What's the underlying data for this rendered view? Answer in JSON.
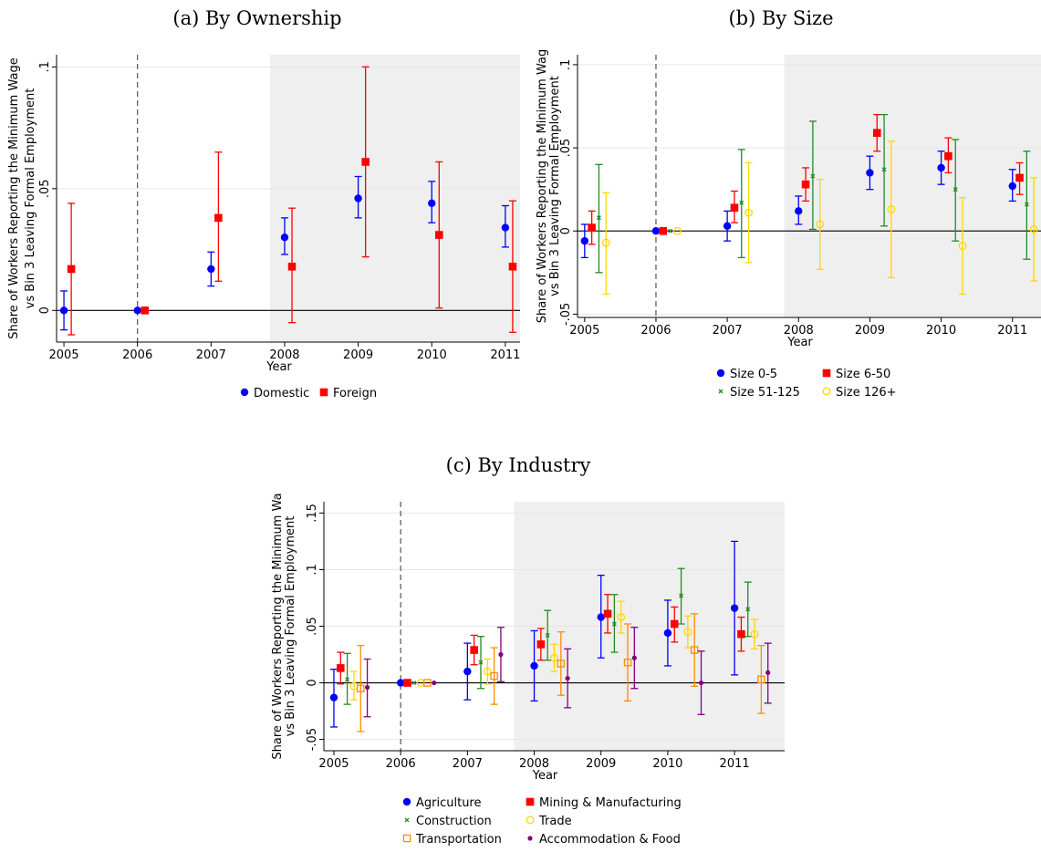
{
  "figure": {
    "panels_text": [
      "(a) By Ownership",
      "(b) By Size",
      "(c) By Industry"
    ]
  },
  "chart_data": [
    {
      "type": "scatter",
      "panel": "a",
      "title": "(a) By Ownership",
      "xlabel": "Year",
      "ylabel_lines": [
        "Share of Workers Reporting the Minimum Wage",
        "vs Bin 3 Leaving Formal Employment"
      ],
      "x_ticks": [
        "2005",
        "2006",
        "2007",
        "2008",
        "2009",
        "2010",
        "2011"
      ],
      "y_ticks": [
        0,
        0.05,
        0.1
      ],
      "y_tick_labels": [
        "0",
        ".05",
        ".1"
      ],
      "ylim": [
        -0.013,
        0.105
      ],
      "xlim": [
        2004.9,
        2011.2
      ],
      "shaded_from": 2007.8,
      "reference_year": 2006,
      "legend": [
        "Domestic",
        "Foreign"
      ],
      "series": [
        {
          "name": "Domestic",
          "color": "#0000ff",
          "marker": "circle",
          "offset": 0,
          "x": [
            2005,
            2006,
            2007,
            2008,
            2009,
            2010,
            2011
          ],
          "y": [
            0.0,
            0.0,
            0.017,
            0.03,
            0.046,
            0.044,
            0.034
          ],
          "lo": [
            -0.008,
            0.0,
            0.01,
            0.023,
            0.038,
            0.036,
            0.026
          ],
          "hi": [
            0.008,
            0.0,
            0.024,
            0.038,
            0.055,
            0.053,
            0.043
          ]
        },
        {
          "name": "Foreign",
          "color": "#ff0000",
          "marker": "square",
          "offset": 0.1,
          "x": [
            2005,
            2006,
            2007,
            2008,
            2009,
            2010,
            2011
          ],
          "y": [
            0.017,
            0.0,
            0.038,
            0.018,
            0.061,
            0.031,
            0.018
          ],
          "lo": [
            -0.01,
            0.0,
            0.012,
            -0.005,
            0.022,
            0.001,
            -0.009
          ],
          "hi": [
            0.044,
            0.0,
            0.065,
            0.042,
            0.1,
            0.061,
            0.045
          ]
        }
      ]
    },
    {
      "type": "scatter",
      "panel": "b",
      "title": "(b) By Size",
      "xlabel": "Year",
      "ylabel_lines": [
        "Share of Workers Reporting the Minimum Wag",
        "vs Bin 3 Leaving Formal Employment"
      ],
      "x_ticks": [
        "2005",
        "2006",
        "2007",
        "2008",
        "2009",
        "2010",
        "2011"
      ],
      "y_ticks": [
        -0.05,
        0,
        0.05,
        0.1
      ],
      "y_tick_labels": [
        "-.05",
        "0",
        ".05",
        ".1"
      ],
      "ylim": [
        -0.052,
        0.106
      ],
      "xlim": [
        2004.9,
        2011.4
      ],
      "shaded_from": 2007.8,
      "reference_year": 2006,
      "legend": [
        "Size 0-5",
        "Size 6-50",
        "Size 51-125",
        "Size 126+"
      ],
      "series": [
        {
          "name": "Size 0-5",
          "color": "#0000ff",
          "marker": "circle",
          "offset": 0,
          "x": [
            2005,
            2006,
            2007,
            2008,
            2009,
            2010,
            2011
          ],
          "y": [
            -0.006,
            0.0,
            0.003,
            0.012,
            0.035,
            0.038,
            0.027
          ],
          "lo": [
            -0.016,
            0.0,
            -0.006,
            0.004,
            0.025,
            0.028,
            0.018
          ],
          "hi": [
            0.004,
            0.0,
            0.012,
            0.021,
            0.045,
            0.048,
            0.037
          ]
        },
        {
          "name": "Size 6-50",
          "color": "#ff0000",
          "marker": "square",
          "offset": 0.1,
          "x": [
            2005,
            2006,
            2007,
            2008,
            2009,
            2010,
            2011
          ],
          "y": [
            0.002,
            0.0,
            0.014,
            0.028,
            0.059,
            0.045,
            0.032
          ],
          "lo": [
            -0.008,
            0.0,
            0.005,
            0.018,
            0.048,
            0.035,
            0.022
          ],
          "hi": [
            0.012,
            0.0,
            0.024,
            0.038,
            0.07,
            0.056,
            0.041
          ]
        },
        {
          "name": "Size 51-125",
          "color": "#228b22",
          "marker": "x",
          "offset": 0.2,
          "x": [
            2005,
            2006,
            2007,
            2008,
            2009,
            2010,
            2011
          ],
          "y": [
            0.008,
            0.0,
            0.017,
            0.033,
            0.037,
            0.025,
            0.016
          ],
          "lo": [
            -0.025,
            0.0,
            -0.016,
            0.001,
            0.003,
            -0.006,
            -0.017
          ],
          "hi": [
            0.04,
            0.0,
            0.049,
            0.066,
            0.07,
            0.055,
            0.048
          ]
        },
        {
          "name": "Size 126+",
          "color": "#ffd700",
          "marker": "hollow-circle",
          "offset": 0.3,
          "x": [
            2005,
            2006,
            2007,
            2008,
            2009,
            2010,
            2011
          ],
          "y": [
            -0.007,
            0.0,
            0.011,
            0.004,
            0.013,
            -0.009,
            0.001
          ],
          "lo": [
            -0.038,
            0.0,
            -0.019,
            -0.023,
            -0.028,
            -0.038,
            -0.03
          ],
          "hi": [
            0.023,
            0.0,
            0.041,
            0.031,
            0.054,
            0.02,
            0.032
          ]
        }
      ]
    },
    {
      "type": "scatter",
      "panel": "c",
      "title": "(c) By Industry",
      "xlabel": "Year",
      "ylabel_lines": [
        "Share of Workers Reporting the Minimum Wa",
        "vs Bin 3 Leaving Formal Employment"
      ],
      "x_ticks": [
        "2005",
        "2006",
        "2007",
        "2008",
        "2009",
        "2010",
        "2011"
      ],
      "y_ticks": [
        -0.05,
        0,
        0.05,
        0.1,
        0.15
      ],
      "y_tick_labels": [
        "-.05",
        "0",
        ".05",
        ".1",
        ".15"
      ],
      "ylim": [
        -0.06,
        0.16
      ],
      "xlim": [
        2004.85,
        2011.75
      ],
      "shaded_from": 2007.7,
      "reference_year": 2006,
      "legend": [
        "Agriculture",
        "Mining & Manufacturing",
        "Construction",
        "Trade",
        "Transportation",
        "Accommodation & Food"
      ],
      "series": [
        {
          "name": "Agriculture",
          "color": "#0000ff",
          "marker": "circle",
          "offset": 0,
          "x": [
            2005,
            2006,
            2007,
            2008,
            2009,
            2010,
            2011
          ],
          "y": [
            -0.013,
            0.0,
            0.01,
            0.015,
            0.058,
            0.044,
            0.066
          ],
          "lo": [
            -0.039,
            0.0,
            -0.015,
            -0.016,
            0.022,
            0.015,
            0.007
          ],
          "hi": [
            0.012,
            0.0,
            0.035,
            0.046,
            0.095,
            0.073,
            0.125
          ]
        },
        {
          "name": "Mining & Manufacturing",
          "color": "#ff0000",
          "marker": "square",
          "offset": 0.1,
          "x": [
            2005,
            2006,
            2007,
            2008,
            2009,
            2010,
            2011
          ],
          "y": [
            0.013,
            0.0,
            0.029,
            0.034,
            0.061,
            0.052,
            0.043
          ],
          "lo": [
            -0.001,
            0.0,
            0.016,
            0.02,
            0.044,
            0.036,
            0.028
          ],
          "hi": [
            0.027,
            0.0,
            0.042,
            0.048,
            0.078,
            0.067,
            0.058
          ]
        },
        {
          "name": "Construction",
          "color": "#228b22",
          "marker": "x",
          "offset": 0.2,
          "x": [
            2005,
            2006,
            2007,
            2008,
            2009,
            2010,
            2011
          ],
          "y": [
            0.003,
            0.0,
            0.018,
            0.042,
            0.052,
            0.077,
            0.065
          ],
          "lo": [
            -0.019,
            0.0,
            -0.005,
            0.02,
            0.027,
            0.052,
            0.041
          ],
          "hi": [
            0.026,
            0.0,
            0.041,
            0.064,
            0.078,
            0.101,
            0.089
          ]
        },
        {
          "name": "Trade",
          "color": "#ffd700",
          "marker": "hollow-circle",
          "offset": 0.3,
          "x": [
            2005,
            2006,
            2007,
            2008,
            2009,
            2010,
            2011
          ],
          "y": [
            -0.003,
            0.0,
            0.01,
            0.022,
            0.058,
            0.045,
            0.043
          ],
          "lo": [
            -0.015,
            0.0,
            -0.001,
            0.01,
            0.044,
            0.031,
            0.03
          ],
          "hi": [
            0.01,
            0.0,
            0.021,
            0.034,
            0.072,
            0.059,
            0.056
          ]
        },
        {
          "name": "Transportation",
          "color": "#ff8c00",
          "marker": "hollow-square",
          "offset": 0.4,
          "x": [
            2005,
            2006,
            2007,
            2008,
            2009,
            2010,
            2011
          ],
          "y": [
            -0.005,
            0.0,
            0.006,
            0.017,
            0.018,
            0.029,
            0.003
          ],
          "lo": [
            -0.043,
            0.0,
            -0.019,
            -0.011,
            -0.016,
            -0.003,
            -0.027
          ],
          "hi": [
            0.033,
            0.0,
            0.031,
            0.045,
            0.052,
            0.061,
            0.033
          ]
        },
        {
          "name": "Accommodation & Food",
          "color": "#800080",
          "marker": "dot",
          "offset": 0.5,
          "x": [
            2005,
            2006,
            2007,
            2008,
            2009,
            2010,
            2011
          ],
          "y": [
            -0.004,
            0.0,
            0.025,
            0.004,
            0.022,
            0.0,
            0.009
          ],
          "lo": [
            -0.03,
            0.0,
            0.001,
            -0.022,
            -0.005,
            -0.028,
            -0.018
          ],
          "hi": [
            0.021,
            0.0,
            0.049,
            0.03,
            0.049,
            0.028,
            0.035
          ]
        }
      ]
    }
  ]
}
